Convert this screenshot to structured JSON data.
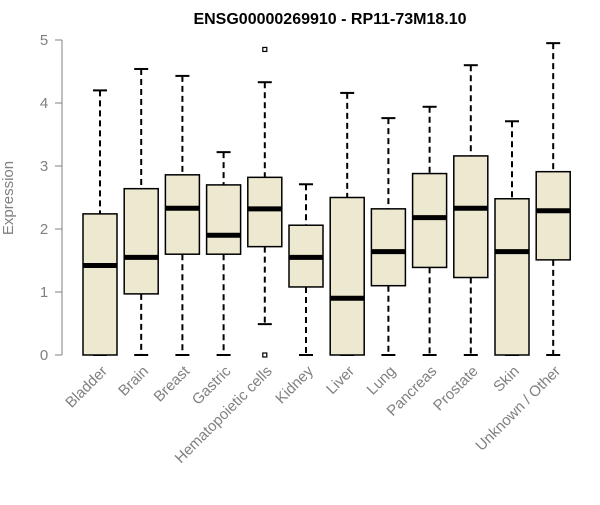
{
  "chart_data": {
    "type": "boxplot",
    "title": "ENSG00000269910 - RP11-73M18.10",
    "ylabel": "Expression",
    "xlabel": "",
    "ylim": [
      0,
      5
    ],
    "yticks": [
      0,
      1,
      2,
      3,
      4,
      5
    ],
    "grid": false,
    "legend": "none",
    "colors": {
      "box_fill": "#ede8d0",
      "box_stroke": "#000000",
      "axis": "#808080"
    },
    "categories": [
      "Bladder",
      "Brain",
      "Breast",
      "Gastric",
      "Hematopoietic cells",
      "Kidney",
      "Liver",
      "Lung",
      "Pancreas",
      "Prostate",
      "Skin",
      "Unknown / Other"
    ],
    "boxes": [
      {
        "category": "Bladder",
        "min": 0,
        "q1": 0,
        "median": 1.42,
        "q3": 2.24,
        "max": 4.2,
        "outliers": []
      },
      {
        "category": "Brain",
        "min": 0,
        "q1": 0.97,
        "median": 1.55,
        "q3": 2.64,
        "max": 4.54,
        "outliers": []
      },
      {
        "category": "Breast",
        "min": 0,
        "q1": 1.6,
        "median": 2.33,
        "q3": 2.86,
        "max": 4.43,
        "outliers": []
      },
      {
        "category": "Gastric",
        "min": 0,
        "q1": 1.6,
        "median": 1.9,
        "q3": 2.7,
        "max": 3.22,
        "outliers": []
      },
      {
        "category": "Hematopoietic cells",
        "min": 0.49,
        "q1": 1.72,
        "median": 2.32,
        "q3": 2.82,
        "max": 4.33,
        "outliers": [
          0,
          4.85
        ]
      },
      {
        "category": "Kidney",
        "min": 0,
        "q1": 1.08,
        "median": 1.55,
        "q3": 2.06,
        "max": 2.71,
        "outliers": []
      },
      {
        "category": "Liver",
        "min": 0,
        "q1": 0,
        "median": 0.9,
        "q3": 2.5,
        "max": 4.16,
        "outliers": []
      },
      {
        "category": "Lung",
        "min": 0,
        "q1": 1.1,
        "median": 1.64,
        "q3": 2.32,
        "max": 3.76,
        "outliers": []
      },
      {
        "category": "Pancreas",
        "min": 0,
        "q1": 1.39,
        "median": 2.18,
        "q3": 2.88,
        "max": 3.94,
        "outliers": []
      },
      {
        "category": "Prostate",
        "min": 0,
        "q1": 1.23,
        "median": 2.33,
        "q3": 3.16,
        "max": 4.6,
        "outliers": []
      },
      {
        "category": "Skin",
        "min": 0,
        "q1": 0,
        "median": 1.64,
        "q3": 2.48,
        "max": 3.71,
        "outliers": []
      },
      {
        "category": "Unknown / Other",
        "min": 0,
        "q1": 1.51,
        "median": 2.29,
        "q3": 2.91,
        "max": 4.95,
        "outliers": []
      }
    ]
  }
}
